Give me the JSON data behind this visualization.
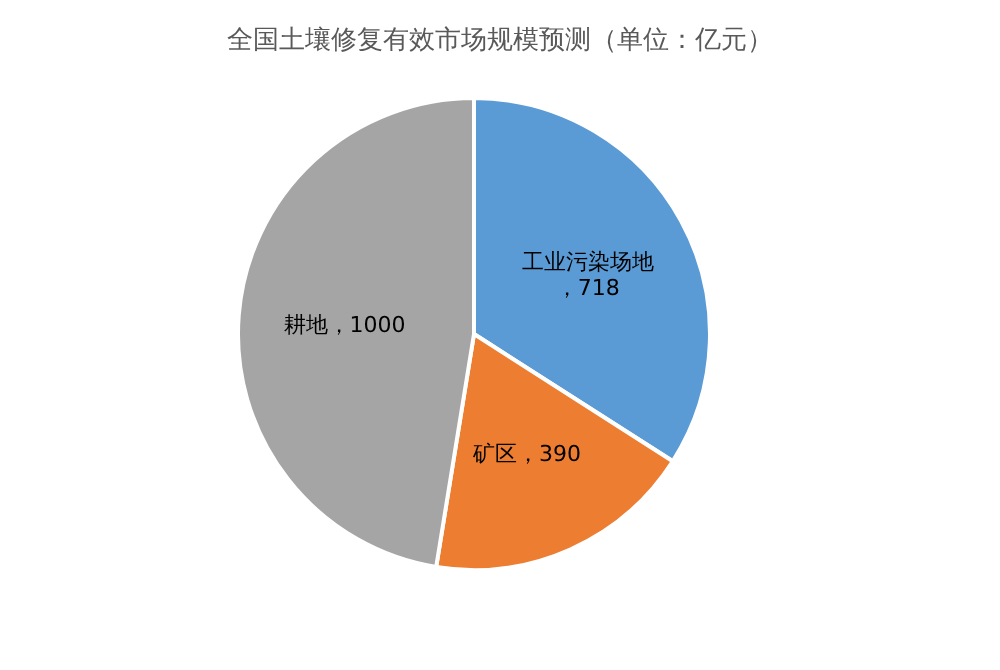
{
  "chart_data": {
    "type": "pie",
    "title": "全国土壤修复有效市场规模预测（单位：亿元）",
    "categories": [
      "工业污染场地",
      "矿区",
      "耕地"
    ],
    "values": [
      718,
      390,
      1000
    ],
    "colors": [
      "#5b9bd5",
      "#ed7d31",
      "#a5a5a5"
    ],
    "value_labels": [
      "，718",
      "，390",
      "，1000"
    ]
  }
}
